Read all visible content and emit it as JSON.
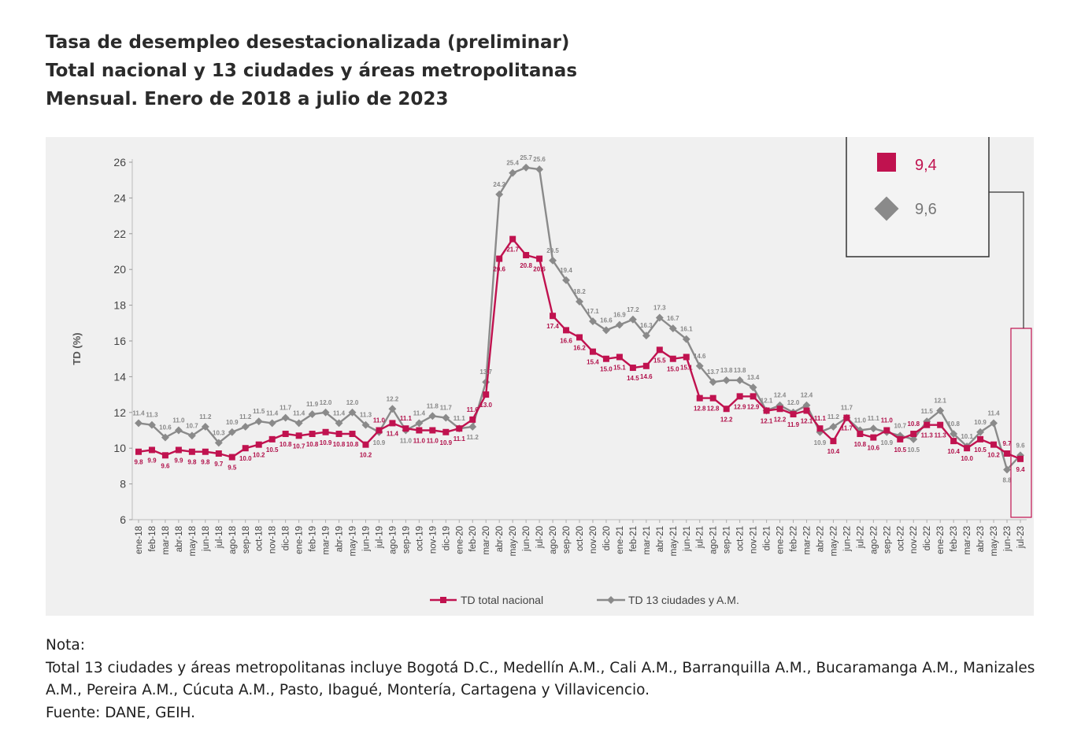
{
  "title_lines": [
    "Tasa de desempleo desestacionalizada (preliminar)",
    "Total nacional y 13 ciudades y áreas metropolitanas",
    "Mensual. Enero de 2018 a julio de 2023"
  ],
  "chart_data": {
    "type": "line",
    "ylabel": "TD (%)",
    "ylim": [
      6,
      26
    ],
    "yticks": [
      6,
      8,
      10,
      12,
      14,
      16,
      18,
      20,
      22,
      24,
      26
    ],
    "categories": [
      "ene-18",
      "feb-18",
      "mar-18",
      "abr-18",
      "may-18",
      "jun-18",
      "jul-18",
      "ago-18",
      "sep-18",
      "oct-18",
      "nov-18",
      "dic-18",
      "ene-19",
      "feb-19",
      "mar-19",
      "abr-19",
      "may-19",
      "jun-19",
      "jul-19",
      "ago-19",
      "sep-19",
      "oct-19",
      "nov-19",
      "dic-19",
      "ene-20",
      "feb-20",
      "mar-20",
      "abr-20",
      "may-20",
      "jun-20",
      "jul-20",
      "ago-20",
      "sep-20",
      "oct-20",
      "nov-20",
      "dic-20",
      "ene-21",
      "feb-21",
      "mar-21",
      "abr-21",
      "may-21",
      "jun-21",
      "jul-21",
      "ago-21",
      "sep-21",
      "oct-21",
      "nov-21",
      "dic-21",
      "ene-22",
      "feb-22",
      "mar-22",
      "abr-22",
      "may-22",
      "jun-22",
      "jul-22",
      "ago-22",
      "sep-22",
      "oct-22",
      "nov-22",
      "dic-22",
      "ene-23",
      "feb-23",
      "mar-23",
      "abr-23",
      "may-23",
      "jun-23",
      "jul-23"
    ],
    "series": [
      {
        "name": "TD total nacional",
        "color": "#c0124f",
        "marker": "square",
        "values": [
          9.8,
          9.9,
          9.6,
          9.9,
          9.8,
          9.8,
          9.7,
          9.5,
          10.0,
          10.2,
          10.5,
          10.8,
          10.7,
          10.8,
          10.9,
          10.8,
          10.8,
          10.2,
          11.0,
          11.4,
          11.1,
          11.0,
          11.0,
          10.9,
          11.1,
          11.6,
          13.0,
          20.6,
          21.7,
          20.8,
          20.6,
          17.4,
          16.6,
          16.2,
          15.4,
          15.0,
          15.1,
          14.5,
          14.6,
          15.5,
          15.0,
          15.1,
          12.8,
          12.8,
          12.2,
          12.9,
          12.9,
          12.1,
          12.2,
          11.9,
          12.1,
          11.1,
          10.4,
          11.7,
          10.8,
          10.6,
          11.0,
          10.5,
          10.8,
          11.3,
          11.3,
          10.4,
          10.0,
          10.5,
          10.2,
          9.7,
          9.4
        ]
      },
      {
        "name": "TD 13 ciudades y A.M.",
        "color": "#8a8a8a",
        "marker": "diamond",
        "values": [
          11.4,
          11.3,
          10.6,
          11.0,
          10.7,
          11.2,
          10.3,
          10.9,
          11.2,
          11.5,
          11.4,
          11.7,
          11.4,
          11.9,
          12.0,
          11.4,
          12.0,
          11.3,
          10.9,
          12.2,
          11.0,
          11.4,
          11.8,
          11.7,
          11.1,
          11.2,
          13.7,
          24.2,
          25.4,
          25.7,
          25.6,
          20.5,
          19.4,
          18.2,
          17.1,
          16.6,
          16.9,
          17.2,
          16.3,
          17.3,
          16.7,
          16.1,
          14.6,
          13.7,
          13.8,
          13.8,
          13.4,
          12.1,
          12.4,
          12.0,
          12.4,
          10.9,
          11.2,
          11.7,
          11.0,
          11.1,
          10.9,
          10.7,
          10.5,
          11.5,
          12.1,
          10.8,
          10.1,
          10.9,
          11.4,
          8.8,
          9.6
        ]
      }
    ],
    "point_labels_nacional": [
      "9.8",
      "9.9",
      "9.6",
      "9.9",
      "9.8",
      "9.8",
      "9.7",
      "9.5",
      "10.0",
      "10.2",
      "10.5",
      "10.8",
      "10.7",
      "10.8",
      "10.9",
      "10.8",
      "10.8",
      "10.2",
      "11.0",
      "11.4",
      "11.1",
      "11.0",
      "11.0",
      "10.9",
      "11.1",
      "11.6",
      "13.0",
      "20.6",
      "21.7",
      "20.8",
      "20.6",
      "17.4",
      "16.6",
      "16.2",
      "15.4",
      "15.0",
      "15.1",
      "14.5",
      "14.6",
      "15.5",
      "15.0",
      "15.1",
      "12.8",
      "12.8",
      "12.2",
      "12.9",
      "12.9",
      "12.1",
      "12.2",
      "11.9",
      "12.1",
      "11.1",
      "10.4",
      "11.7",
      "10.8",
      "10.6",
      "11.0",
      "10.5",
      "10.8",
      "11.3",
      "11.3",
      "10.4",
      "10.0",
      "10.5",
      "10.2",
      "9.7",
      "9.4"
    ],
    "point_labels_ciudades": [
      "11.4",
      "11.3",
      "10.6",
      "11.0",
      "10.7",
      "11.2",
      "10.3",
      "10.9",
      "11.2",
      "11.5",
      "11.4",
      "11.7",
      "11.4",
      "11.9",
      "12.0",
      "11.4",
      "12.0",
      "11.3",
      "10.9",
      "12.2",
      "11.0",
      "11.4",
      "11.8",
      "11.7",
      "11.1",
      "11.2",
      "13.7",
      "24.2",
      "25.4",
      "25.7",
      "25.6",
      "20.5",
      "19.4",
      "18.2",
      "17.1",
      "16.6",
      "16.9",
      "17.2",
      "16.3",
      "17.3",
      "16.7",
      "16.1",
      "14.6",
      "13.7",
      "13.8",
      "13.8",
      "13.4",
      "12.1",
      "12.4",
      "12.0",
      "12.4",
      "10.9",
      "11.2",
      "11.7",
      "11.0",
      "11.1",
      "10.9",
      "10.7",
      "10.5",
      "11.5",
      "12.1",
      "10.8",
      "10.1",
      "10.9",
      "11.4",
      "8.8",
      "9.6"
    ],
    "legend": [
      "TD total nacional",
      "TD 13 ciudades y A.M."
    ],
    "callout": [
      {
        "label": "9,4",
        "series": "TD total nacional",
        "color": "#c0124f"
      },
      {
        "label": "9,6",
        "series": "TD 13 ciudades y A.M.",
        "color": "#8a8a8a"
      }
    ]
  },
  "notes": {
    "heading": "Nota:",
    "line1": "Total 13 ciudades y áreas metropolitanas incluye Bogotá D.C., Medellín A.M., Cali A.M., Barranquilla A.M., Bucaramanga A.M., Manizales A.M., Pereira A.M., Cúcuta A.M., Pasto, Ibagué, Montería, Cartagena y Villavicencio.",
    "source": "Fuente: DANE, GEIH."
  }
}
